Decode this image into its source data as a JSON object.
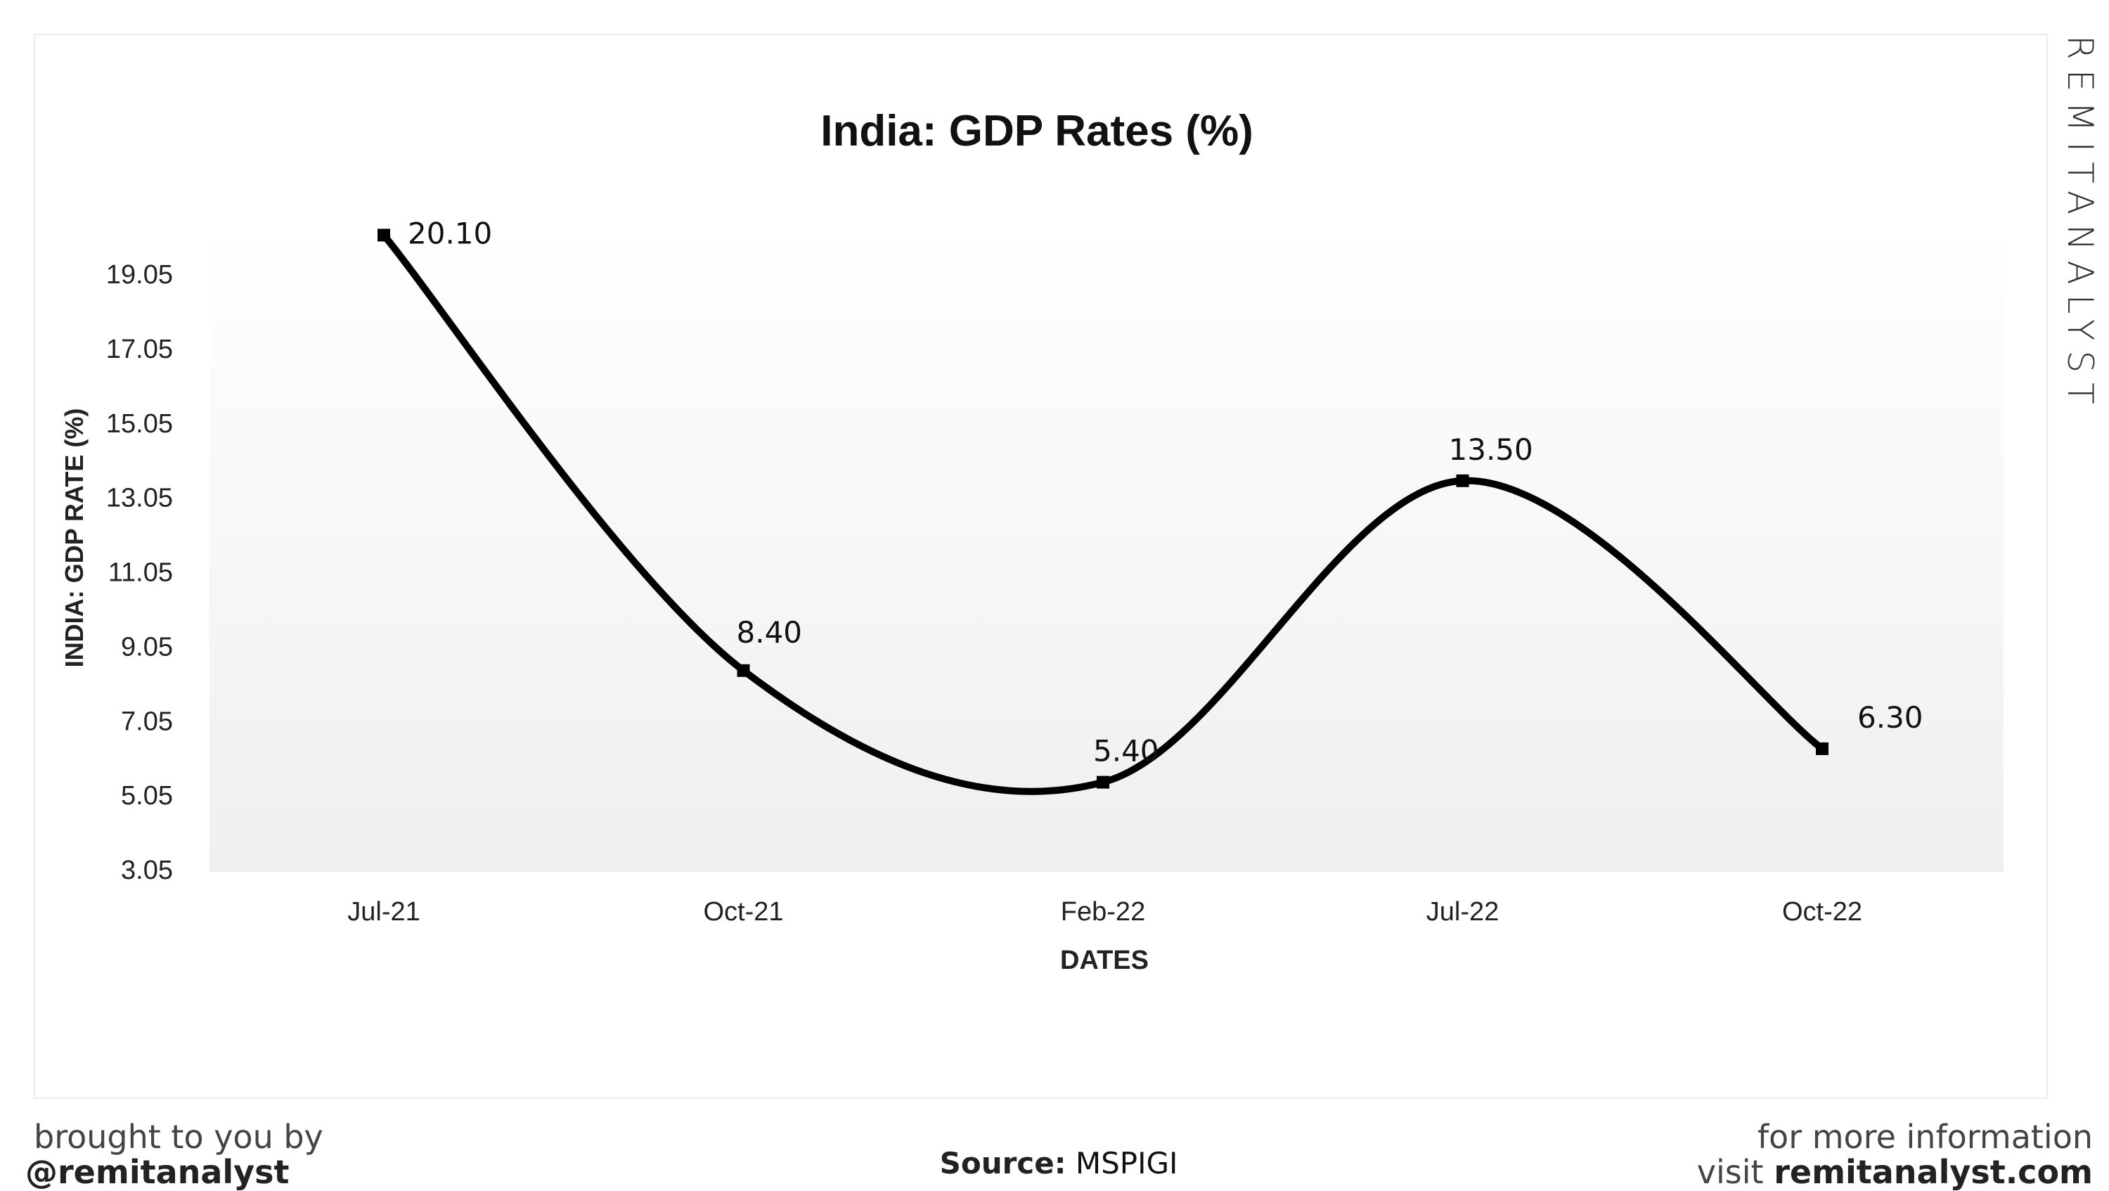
{
  "chart_data": {
    "type": "line",
    "title": "India: GDP Rates (%)",
    "xlabel": "DATES",
    "ylabel": "INDIA: GDP RATE (%)",
    "categories": [
      "Jul-21",
      "Oct-21",
      "Feb-22",
      "Jul-22",
      "Oct-22"
    ],
    "values": [
      20.1,
      8.4,
      5.4,
      13.5,
      6.3
    ],
    "data_labels": [
      "20.10",
      "8.40",
      "5.40",
      "13.50",
      "6.30"
    ],
    "yticks": [
      "3.05",
      "5.05",
      "7.05",
      "9.05",
      "11.05",
      "13.05",
      "15.05",
      "17.05",
      "19.05"
    ],
    "ylim": [
      3.05,
      20.45
    ],
    "grid": false,
    "line_color": "#000000",
    "smooth": true
  },
  "brand": "REMITANALYST",
  "footer": {
    "left_line1": "brought to you by",
    "left_line2": "@remitanalyst",
    "source_label": "Source:",
    "source_value": "MSPIGI",
    "right_line1": "for more information",
    "right_line2_prefix": "visit",
    "right_line2_site": "remitanalyst.com"
  }
}
